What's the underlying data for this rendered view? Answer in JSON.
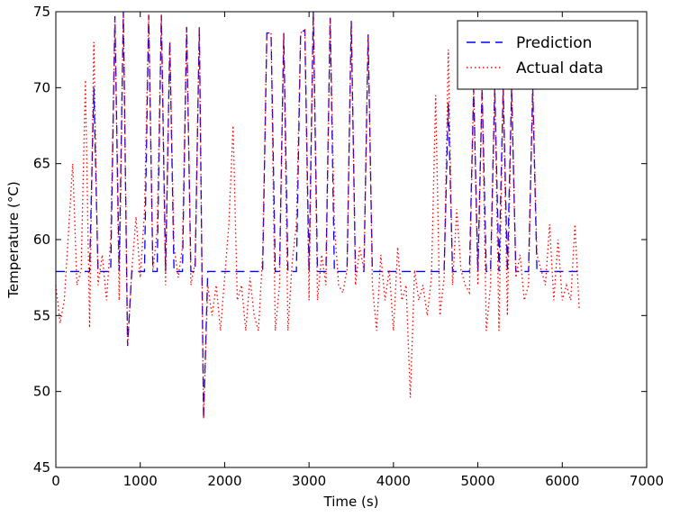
{
  "chart_data": {
    "type": "line",
    "xlabel": "Time (s)",
    "ylabel": "Temperature (°C)",
    "x": [
      0,
      50,
      100,
      150,
      200,
      250,
      300,
      350,
      400,
      450,
      500,
      550,
      600,
      650,
      700,
      750,
      800,
      850,
      900,
      950,
      1000,
      1050,
      1100,
      1150,
      1200,
      1250,
      1300,
      1350,
      1400,
      1450,
      1500,
      1550,
      1600,
      1650,
      1700,
      1750,
      1800,
      1850,
      1900,
      1950,
      2000,
      2050,
      2100,
      2150,
      2200,
      2250,
      2300,
      2350,
      2400,
      2450,
      2500,
      2550,
      2600,
      2650,
      2700,
      2750,
      2800,
      2850,
      2900,
      2950,
      3000,
      3050,
      3100,
      3150,
      3200,
      3250,
      3300,
      3350,
      3400,
      3450,
      3500,
      3550,
      3600,
      3650,
      3700,
      3750,
      3800,
      3850,
      3900,
      3950,
      4000,
      4050,
      4100,
      4150,
      4200,
      4250,
      4300,
      4350,
      4400,
      4450,
      4500,
      4550,
      4600,
      4650,
      4700,
      4750,
      4800,
      4850,
      4900,
      4950,
      5000,
      5050,
      5100,
      5150,
      5200,
      5250,
      5300,
      5350,
      5400,
      5450,
      5500,
      5550,
      5600,
      5650,
      5700,
      5750,
      5800,
      5850,
      5900,
      5950,
      6000,
      6050,
      6100,
      6150,
      6200
    ],
    "series": [
      {
        "name": "Prediction",
        "color": "#0000ff",
        "style": "dashed",
        "values": [
          57.9,
          57.9,
          57.9,
          57.9,
          57.9,
          57.9,
          57.9,
          57.9,
          57.9,
          70,
          57.9,
          57.9,
          57.9,
          57.9,
          74.7,
          57.9,
          75,
          53,
          57.9,
          57.9,
          57.9,
          57.9,
          74.8,
          57.9,
          57.9,
          74.8,
          57.9,
          73,
          57.9,
          57.9,
          57.9,
          74,
          57.9,
          57.9,
          74,
          48.2,
          57.9,
          57.9,
          57.9,
          57.9,
          57.9,
          57.9,
          57.9,
          57.9,
          57.9,
          57.9,
          57.9,
          57.9,
          57.9,
          57.9,
          73.6,
          73.6,
          57.9,
          57.9,
          73.6,
          57.9,
          57.9,
          57.9,
          73.6,
          73.8,
          57.9,
          75,
          57.9,
          57.9,
          57.9,
          74.6,
          57.9,
          57.9,
          57.9,
          57.9,
          74.4,
          57.9,
          57.9,
          57.9,
          73.5,
          57.9,
          57.9,
          57.9,
          57.9,
          57.9,
          57.9,
          57.9,
          57.9,
          57.9,
          57.9,
          57.9,
          57.9,
          57.9,
          57.9,
          57.9,
          57.9,
          57.9,
          57.9,
          69,
          57.9,
          57.9,
          57.9,
          57.9,
          57.9,
          70,
          57.9,
          70,
          57.9,
          57.9,
          70,
          57.9,
          70,
          57.9,
          70,
          57.9,
          57.9,
          57.9,
          57.9,
          70,
          57.9,
          57.9,
          57.9,
          57.9,
          57.9,
          57.9,
          57.9,
          57.9,
          57.9,
          57.9,
          57.9
        ]
      },
      {
        "name": "Actual data",
        "color": "#ff0000",
        "style": "dotted",
        "values": [
          57,
          54.5,
          56,
          60.5,
          65,
          57,
          58,
          70.5,
          54.2,
          73,
          57,
          59,
          56,
          60,
          74.5,
          56,
          75,
          53,
          58,
          61.5,
          57.5,
          61.8,
          74.8,
          58,
          60.5,
          74.8,
          57,
          73,
          59.5,
          57.5,
          59.5,
          74,
          57,
          58.5,
          74,
          48.2,
          57,
          55,
          57,
          54,
          57.5,
          61,
          67.5,
          56,
          57,
          54,
          57.5,
          55,
          54,
          59,
          73.6,
          73.6,
          54,
          57,
          73.6,
          54,
          58.5,
          61,
          73.6,
          73.8,
          56,
          75,
          56,
          59,
          57,
          74.6,
          61,
          57,
          56.5,
          58,
          74.4,
          57,
          59.5,
          58,
          73.5,
          57,
          54,
          59,
          56,
          58,
          54,
          59.5,
          56,
          57,
          49.6,
          58,
          56,
          57,
          55,
          57.5,
          69.5,
          55,
          57.5,
          72.5,
          57,
          62,
          58,
          57,
          56.5,
          70,
          57,
          70,
          54,
          57,
          70,
          54,
          70,
          55,
          70,
          57.5,
          59,
          56,
          57,
          70,
          59,
          58,
          57,
          61,
          56,
          60,
          56,
          57,
          56,
          61,
          55.5
        ]
      }
    ],
    "xlim": [
      0,
      7000
    ],
    "xticks": [
      0,
      1000,
      2000,
      3000,
      4000,
      5000,
      6000,
      7000
    ],
    "ylim": [
      45,
      75
    ],
    "yticks": [
      45,
      50,
      55,
      60,
      65,
      70,
      75
    ],
    "legend": "upper right"
  }
}
